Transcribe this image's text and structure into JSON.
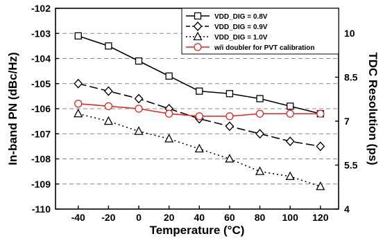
{
  "chart_data": {
    "type": "line",
    "xlabel": "Temperature (°C)",
    "ylabel": "In-band PN (dBc/Hz)",
    "y2label": "TDC Resolution (ps)",
    "x": [
      -40,
      -20,
      0,
      20,
      40,
      60,
      80,
      100,
      120
    ],
    "x_ticks": [
      "-40",
      "-20",
      "0",
      "20",
      "40",
      "60",
      "80",
      "100",
      "120"
    ],
    "xlim": [
      -55,
      132
    ],
    "ylim": [
      -110,
      -102
    ],
    "y_ticks": [
      "-102",
      "-103",
      "-104",
      "-105",
      "-106",
      "-107",
      "-108",
      "-109",
      "-110"
    ],
    "y2_ticks": [
      "10",
      "8.5",
      "7",
      "5.5",
      "4"
    ],
    "grid": "horizontal dashed",
    "legend_position": "top-right",
    "series": [
      {
        "name": "VDD_DIG = 0.8V",
        "marker": "square",
        "line": "solid",
        "color": "#000000",
        "values": [
          -103.1,
          -103.5,
          -104.1,
          -104.7,
          -105.3,
          -105.4,
          -105.6,
          -105.9,
          -106.2
        ]
      },
      {
        "name": "VDD_DIG = 0.9V",
        "marker": "diamond",
        "line": "dashed",
        "color": "#000000",
        "values": [
          -105.0,
          -105.3,
          -105.6,
          -106.0,
          -106.4,
          -106.7,
          -107.0,
          -107.3,
          -107.5
        ]
      },
      {
        "name": "VDD_DIG = 1.0V",
        "marker": "triangle",
        "line": "dotted",
        "color": "#000000",
        "values": [
          -106.2,
          -106.5,
          -106.9,
          -107.2,
          -107.6,
          -108.0,
          -108.5,
          -108.7,
          -109.1
        ]
      },
      {
        "name": "w/i doubler for PVT calibration",
        "marker": "circle",
        "line": "solid",
        "color": "#e8231f",
        "values": [
          -105.8,
          -105.9,
          -106.0,
          -106.2,
          -106.3,
          -106.3,
          -106.2,
          -106.2,
          -106.2
        ]
      }
    ]
  }
}
